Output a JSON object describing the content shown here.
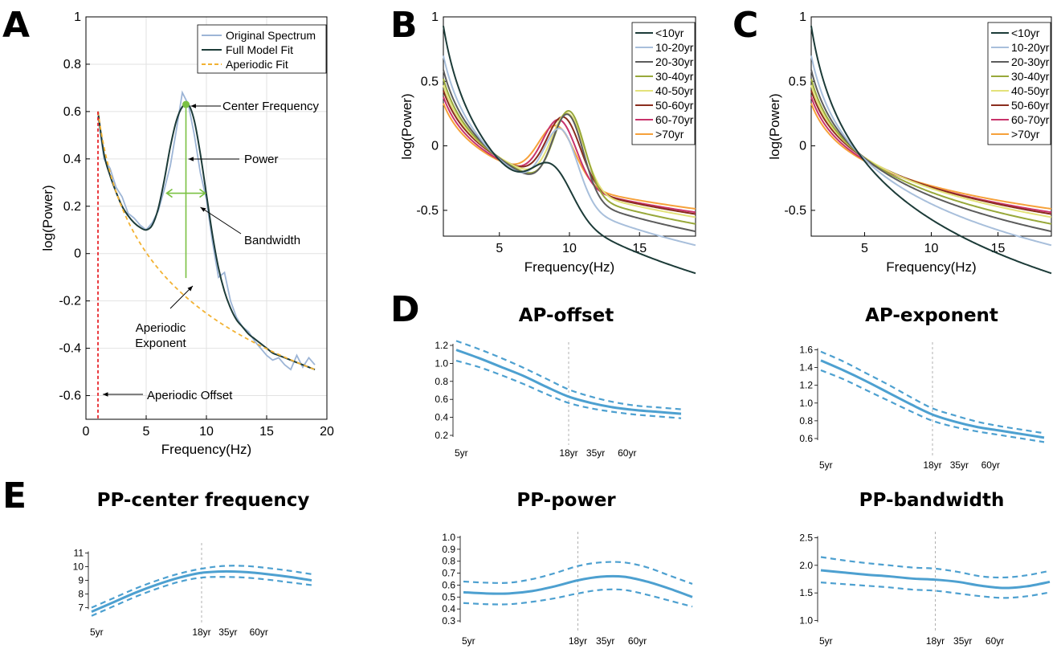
{
  "panel_letters": [
    "A",
    "B",
    "C",
    "D",
    "E"
  ],
  "colors": {
    "original": "#9db5d6",
    "fit": "#1c3b38",
    "aperiodic": "#f2b233",
    "offset_line": "#e8262b",
    "annotation_green": "#7ac142",
    "dev_line": "#4da0d0",
    "age_divider": "#b0b0b0",
    "age_groups": [
      "#1c3b38",
      "#a8bfdb",
      "#5c5c5c",
      "#98a83a",
      "#e3e27a",
      "#8a2d1e",
      "#c8336b",
      "#f6a13a"
    ]
  },
  "chart_data": [
    {
      "id": "A",
      "type": "line",
      "title": "",
      "xlabel": "Frequency(Hz)",
      "ylabel": "log(Power)",
      "xlim": [
        0,
        20
      ],
      "ylim": [
        -0.7,
        1.0
      ],
      "xticks": [
        0,
        5,
        10,
        15,
        20
      ],
      "yticks": [
        -0.6,
        -0.4,
        -0.2,
        0,
        0.2,
        0.4,
        0.6,
        0.8,
        1
      ],
      "ytick_labels": [
        "-0.6",
        "-0.4",
        "-0.2",
        "0",
        "0.2",
        "0.4",
        "0.6",
        "0.8",
        "1"
      ],
      "grid": true,
      "legend": [
        "Original Spectrum",
        "Full Model Fit",
        "Aperiodic Fit"
      ],
      "legend_position": "top-right",
      "annotations": {
        "center_frequency": "Center Frequency",
        "power": "Power",
        "bandwidth": "Bandwidth",
        "aperiodic_exponent_1": "Aperiodic",
        "aperiodic_exponent_2": "Exponent",
        "aperiodic_offset": "Aperiodic Offset"
      },
      "aperiodic": {
        "offset": 0.6,
        "exponent": 1.0
      },
      "peak": {
        "center_frequency": 8.3,
        "power": 0.41,
        "sd": 1.05
      },
      "offset_marker_x": 1.0,
      "x_start": 1,
      "x_end": 19,
      "series": [
        {
          "name": "Original Spectrum",
          "x": [
            1,
            1.5,
            2,
            2.5,
            3,
            3.5,
            4,
            4.5,
            5,
            5.5,
            6,
            6.5,
            7,
            7.5,
            8,
            8.5,
            9,
            9.5,
            10,
            10.5,
            11,
            11.5,
            12,
            12.5,
            13,
            13.5,
            14,
            14.5,
            15,
            15.5,
            16,
            16.5,
            17,
            17.5,
            18,
            18.5,
            19
          ],
          "y": [
            0.58,
            0.4,
            0.36,
            0.28,
            0.24,
            0.17,
            0.15,
            0.12,
            0.1,
            0.13,
            0.18,
            0.27,
            0.37,
            0.52,
            0.68,
            0.63,
            0.5,
            0.34,
            0.23,
            0.05,
            -0.1,
            -0.08,
            -0.2,
            -0.27,
            -0.31,
            -0.33,
            -0.37,
            -0.4,
            -0.43,
            -0.45,
            -0.44,
            -0.47,
            -0.49,
            -0.43,
            -0.48,
            -0.44,
            -0.47
          ]
        },
        {
          "name": "Full Model Fit",
          "x": [
            1,
            1.5,
            2,
            2.5,
            3,
            3.5,
            4,
            4.5,
            5,
            5.5,
            6,
            6.5,
            7,
            7.5,
            8,
            8.5,
            9,
            9.5,
            10,
            10.5,
            11,
            11.5,
            12,
            12.5,
            13,
            13.5,
            14,
            14.5,
            15,
            15.5,
            16,
            16.5,
            17,
            17.5,
            18,
            18.5,
            19
          ],
          "y": [
            0.6,
            0.42,
            0.33,
            0.26,
            0.2,
            0.16,
            0.13,
            0.11,
            0.1,
            0.12,
            0.19,
            0.31,
            0.45,
            0.56,
            0.62,
            0.63,
            0.56,
            0.42,
            0.25,
            0.08,
            -0.06,
            -0.16,
            -0.23,
            -0.28,
            -0.31,
            -0.34,
            -0.36,
            -0.38,
            -0.4,
            -0.42,
            -0.43,
            -0.44,
            -0.45,
            -0.46,
            -0.47,
            -0.48,
            -0.49
          ]
        }
      ]
    },
    {
      "id": "B",
      "type": "line",
      "title": "",
      "xlabel": "Frequency(Hz)",
      "ylabel": "log(Power)",
      "xlim": [
        1,
        19
      ],
      "ylim": [
        -0.7,
        1.0
      ],
      "xticks": [
        5,
        10,
        15
      ],
      "yticks": [
        -0.5,
        0,
        0.5,
        1
      ],
      "ytick_labels": [
        "-0.5",
        "0",
        "0.5",
        "1"
      ],
      "grid": false,
      "legend": [
        "<10yr",
        "10-20yr",
        "20-30yr",
        "30-40yr",
        "40-50yr",
        "50-60yr",
        "60-70yr",
        ">70yr"
      ],
      "legend_position": "top-right",
      "series": [
        {
          "name": "<10yr",
          "offset": 0.93,
          "exponent": 1.5,
          "peak_cf": 8.8,
          "peak_pw": 0.34,
          "peak_sd": 1.4
        },
        {
          "name": "10-20yr",
          "offset": 0.7,
          "exponent": 1.15,
          "peak_cf": 9.4,
          "peak_pw": 0.55,
          "peak_sd": 1.2
        },
        {
          "name": "20-30yr",
          "offset": 0.59,
          "exponent": 0.98,
          "peak_cf": 9.9,
          "peak_pw": 0.63,
          "peak_sd": 1.1
        },
        {
          "name": "30-40yr",
          "offset": 0.52,
          "exponent": 0.88,
          "peak_cf": 10.0,
          "peak_pw": 0.63,
          "peak_sd": 1.1
        },
        {
          "name": "40-50yr",
          "offset": 0.47,
          "exponent": 0.8,
          "peak_cf": 9.9,
          "peak_pw": 0.58,
          "peak_sd": 1.15
        },
        {
          "name": "50-60yr",
          "offset": 0.43,
          "exponent": 0.75,
          "peak_cf": 9.6,
          "peak_pw": 0.53,
          "peak_sd": 1.2
        },
        {
          "name": "60-70yr",
          "offset": 0.38,
          "exponent": 0.7,
          "peak_cf": 9.3,
          "peak_pw": 0.5,
          "peak_sd": 1.2
        },
        {
          "name": ">70yr",
          "offset": 0.33,
          "exponent": 0.64,
          "peak_cf": 9.1,
          "peak_pw": 0.44,
          "peak_sd": 1.3
        }
      ]
    },
    {
      "id": "C",
      "type": "line",
      "title": "",
      "xlabel": "Frequency(Hz)",
      "ylabel": "log(Power)",
      "xlim": [
        1,
        19
      ],
      "ylim": [
        -0.7,
        1.0
      ],
      "xticks": [
        5,
        10,
        15
      ],
      "yticks": [
        -0.5,
        0,
        0.5,
        1
      ],
      "ytick_labels": [
        "-0.5",
        "0",
        "0.5",
        "1"
      ],
      "grid": false,
      "legend": [
        "<10yr",
        "10-20yr",
        "20-30yr",
        "30-40yr",
        "40-50yr",
        "50-60yr",
        "60-70yr",
        ">70yr"
      ],
      "legend_position": "top-right",
      "series": [
        {
          "name": "<10yr",
          "offset": 0.93,
          "exponent": 1.5
        },
        {
          "name": "10-20yr",
          "offset": 0.7,
          "exponent": 1.15
        },
        {
          "name": "20-30yr",
          "offset": 0.59,
          "exponent": 0.98
        },
        {
          "name": "30-40yr",
          "offset": 0.52,
          "exponent": 0.88
        },
        {
          "name": "40-50yr",
          "offset": 0.47,
          "exponent": 0.8
        },
        {
          "name": "50-60yr",
          "offset": 0.43,
          "exponent": 0.75
        },
        {
          "name": "60-70yr",
          "offset": 0.38,
          "exponent": 0.7
        },
        {
          "name": ">70yr",
          "offset": 0.33,
          "exponent": 0.64
        }
      ]
    },
    {
      "id": "D1",
      "type": "line",
      "title": "AP-offset",
      "xticks": [
        "5yr",
        "18yr",
        "35yr",
        "60yr"
      ],
      "xtick_pos": [
        0,
        0.5,
        0.62,
        0.76
      ],
      "yticks": [
        0.2,
        0.4,
        0.6,
        0.8,
        1.0,
        1.2
      ],
      "ytick_labels": [
        "0.2",
        "0.4",
        "0.6",
        "0.8",
        "1.0",
        "1.2"
      ],
      "ylim": [
        0.2,
        1.2
      ],
      "divider_at": 0.5,
      "x": [
        0,
        0.1,
        0.2,
        0.3,
        0.4,
        0.5,
        0.6,
        0.7,
        0.8,
        0.9,
        1.0
      ],
      "mean": [
        1.15,
        1.06,
        0.96,
        0.86,
        0.74,
        0.63,
        0.56,
        0.51,
        0.48,
        0.46,
        0.44
      ],
      "upper": [
        1.25,
        1.16,
        1.06,
        0.95,
        0.83,
        0.71,
        0.63,
        0.57,
        0.53,
        0.51,
        0.49
      ],
      "lower": [
        1.03,
        0.96,
        0.87,
        0.77,
        0.66,
        0.56,
        0.5,
        0.46,
        0.43,
        0.41,
        0.39
      ]
    },
    {
      "id": "D2",
      "type": "line",
      "title": "AP-exponent",
      "xticks": [
        "5yr",
        "18yr",
        "35yr",
        "60yr"
      ],
      "xtick_pos": [
        0,
        0.5,
        0.62,
        0.76
      ],
      "yticks": [
        0.6,
        0.8,
        1.0,
        1.2,
        1.4,
        1.6
      ],
      "ytick_labels": [
        "0.6",
        "0.8",
        "1.0",
        "1.2",
        "1.4",
        "1.6"
      ],
      "ylim": [
        0.5,
        1.65
      ],
      "divider_at": 0.5,
      "x": [
        0,
        0.1,
        0.2,
        0.3,
        0.4,
        0.5,
        0.6,
        0.7,
        0.8,
        0.9,
        1.0
      ],
      "mean": [
        1.48,
        1.37,
        1.25,
        1.12,
        0.99,
        0.87,
        0.79,
        0.73,
        0.69,
        0.65,
        0.61
      ],
      "upper": [
        1.58,
        1.47,
        1.34,
        1.21,
        1.07,
        0.94,
        0.86,
        0.79,
        0.74,
        0.7,
        0.66
      ],
      "lower": [
        1.37,
        1.27,
        1.15,
        1.03,
        0.91,
        0.8,
        0.73,
        0.68,
        0.64,
        0.6,
        0.56
      ]
    },
    {
      "id": "E1",
      "type": "line",
      "title": "PP-center frequency",
      "xticks": [
        "5yr",
        "18yr",
        "35yr",
        "60yr"
      ],
      "xtick_pos": [
        0,
        0.5,
        0.62,
        0.76
      ],
      "yticks": [
        7,
        8,
        9,
        10,
        11
      ],
      "ytick_labels": [
        "7",
        "8",
        "9",
        "10",
        "11"
      ],
      "ylim": [
        6.5,
        11.5
      ],
      "divider_at": 0.5,
      "x": [
        0,
        0.1,
        0.2,
        0.3,
        0.4,
        0.5,
        0.6,
        0.7,
        0.8,
        0.9,
        1.0
      ],
      "mean": [
        6.7,
        7.4,
        8.1,
        8.7,
        9.2,
        9.55,
        9.65,
        9.6,
        9.45,
        9.25,
        9.0
      ],
      "upper": [
        7.0,
        7.7,
        8.4,
        9.0,
        9.5,
        9.85,
        10.05,
        10.05,
        9.9,
        9.7,
        9.45
      ],
      "lower": [
        6.4,
        7.1,
        7.8,
        8.4,
        8.9,
        9.2,
        9.25,
        9.2,
        9.05,
        8.85,
        8.65
      ]
    },
    {
      "id": "E2",
      "type": "line",
      "title": "PP-power",
      "xticks": [
        "5yr",
        "18yr",
        "35yr",
        "60yr"
      ],
      "xtick_pos": [
        0,
        0.5,
        0.62,
        0.76
      ],
      "yticks": [
        0.3,
        0.4,
        0.5,
        0.6,
        0.7,
        0.8,
        0.9,
        1.0
      ],
      "ytick_labels": [
        "0.3",
        "0.4",
        "0.5",
        "0.6",
        "0.7",
        "0.8",
        "0.9",
        "1.0"
      ],
      "ylim": [
        0.28,
        1.02
      ],
      "divider_at": 0.5,
      "x": [
        0,
        0.1,
        0.2,
        0.3,
        0.4,
        0.5,
        0.6,
        0.7,
        0.8,
        0.9,
        1.0
      ],
      "mean": [
        0.54,
        0.53,
        0.53,
        0.55,
        0.59,
        0.64,
        0.67,
        0.67,
        0.63,
        0.57,
        0.5
      ],
      "upper": [
        0.63,
        0.62,
        0.62,
        0.65,
        0.7,
        0.76,
        0.79,
        0.79,
        0.75,
        0.68,
        0.61
      ],
      "lower": [
        0.45,
        0.44,
        0.44,
        0.46,
        0.49,
        0.53,
        0.56,
        0.56,
        0.52,
        0.47,
        0.42
      ]
    },
    {
      "id": "E3",
      "type": "line",
      "title": "PP-bandwidth",
      "xticks": [
        "5yr",
        "18yr",
        "35yr",
        "60yr"
      ],
      "xtick_pos": [
        0,
        0.5,
        0.62,
        0.76
      ],
      "yticks": [
        1.0,
        1.5,
        2.0,
        2.5
      ],
      "ytick_labels": [
        "1.0",
        "1.5",
        "2.0",
        "2.5"
      ],
      "ylim": [
        0.95,
        2.55
      ],
      "divider_at": 0.5,
      "x": [
        0,
        0.1,
        0.2,
        0.3,
        0.4,
        0.5,
        0.6,
        0.7,
        0.8,
        0.9,
        1.0
      ],
      "mean": [
        1.91,
        1.87,
        1.83,
        1.8,
        1.76,
        1.74,
        1.7,
        1.63,
        1.59,
        1.62,
        1.7
      ],
      "upper": [
        2.15,
        2.09,
        2.04,
        2.0,
        1.96,
        1.94,
        1.88,
        1.8,
        1.78,
        1.82,
        1.9
      ],
      "lower": [
        1.69,
        1.66,
        1.63,
        1.6,
        1.56,
        1.54,
        1.49,
        1.44,
        1.41,
        1.44,
        1.51
      ]
    }
  ]
}
